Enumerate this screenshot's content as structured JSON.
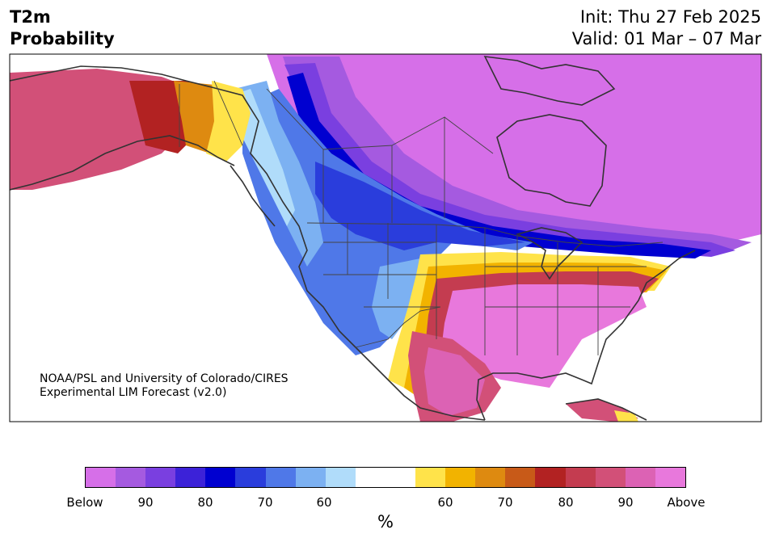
{
  "header": {
    "title_line1": "T2m",
    "title_line2": "Probability",
    "init": "Init: Thu 27 Feb 2025",
    "valid": "Valid: 01 Mar – 07 Mar"
  },
  "credit": {
    "line1": "NOAA/PSL and University of Colorado/CIRES",
    "line2": "Experimental LIM Forecast (v2.0)"
  },
  "colors": {
    "below_90_100": "#d66fe8",
    "below_90": "#a55ae0",
    "below_85": "#7a3fe0",
    "below_80": "#3c22d8",
    "below_75": "#0000d0",
    "below_70": "#2a3ddc",
    "below_65": "#4f78e8",
    "below_60": "#7cb1f2",
    "below_55": "#b0dcfa",
    "neutral": "#ffffff",
    "above_55": "#ffe34a",
    "above_60": "#f2b300",
    "above_65": "#de8a10",
    "above_70": "#c85a18",
    "above_75": "#b22222",
    "above_80": "#c43c50",
    "above_85": "#d25078",
    "above_90": "#dc62b4",
    "above_90_100": "#e878dc",
    "land_outline": "#333333"
  },
  "colorbar": {
    "segments": [
      "#d66fe8",
      "#a55ae0",
      "#7a3fe0",
      "#3c22d8",
      "#0000d0",
      "#2a3ddc",
      "#4f78e8",
      "#7cb1f2",
      "#b0dcfa",
      "#ffffff",
      "#ffffff",
      "#ffe34a",
      "#f2b300",
      "#de8a10",
      "#c85a18",
      "#b22222",
      "#c43c50",
      "#d25078",
      "#dc62b4",
      "#e878dc"
    ],
    "tick_labels": [
      "Below",
      "90",
      "80",
      "70",
      "60",
      "60",
      "70",
      "80",
      "90",
      "Above"
    ],
    "unit": "%"
  },
  "map": {
    "regions": [
      {
        "name": "alaska-west",
        "category": "above_85"
      },
      {
        "name": "alaska-interior",
        "category": "above_75"
      },
      {
        "name": "yukon",
        "category": "above_65"
      },
      {
        "name": "british-columbia",
        "category": "below_60"
      },
      {
        "name": "alberta-prairies",
        "category": "below_70"
      },
      {
        "name": "northern-canada",
        "category": "below_90_100"
      },
      {
        "name": "us-west",
        "category": "below_65"
      },
      {
        "name": "us-northern-plains",
        "category": "below_70"
      },
      {
        "name": "us-southern-plains",
        "category": "above_80"
      },
      {
        "name": "us-southeast",
        "category": "above_90_100"
      },
      {
        "name": "mexico",
        "category": "above_85"
      },
      {
        "name": "cuba",
        "category": "above_85"
      }
    ]
  }
}
